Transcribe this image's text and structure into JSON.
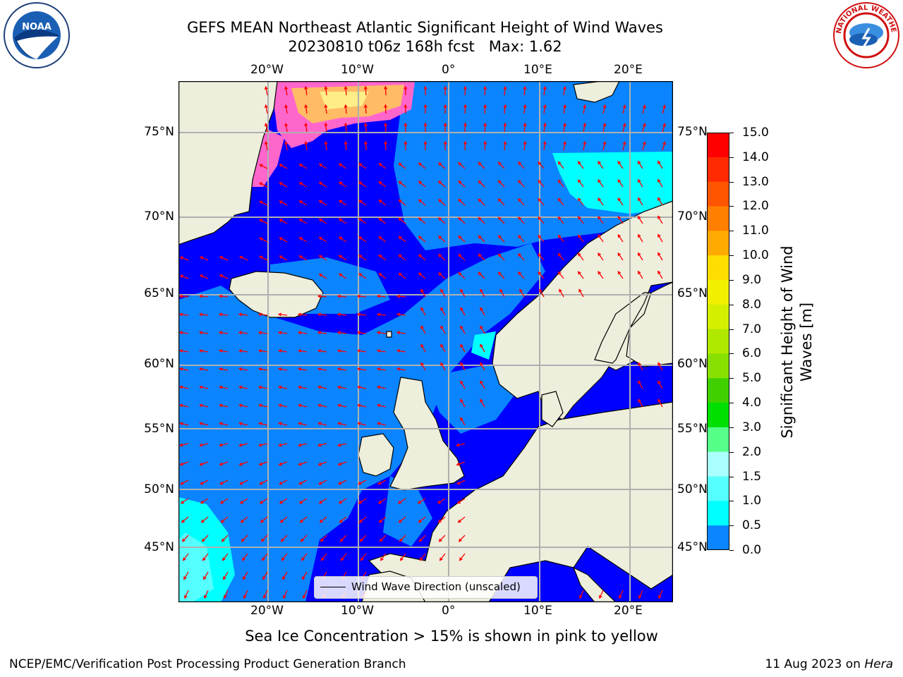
{
  "title": {
    "line1": "GEFS MEAN Northeast Atlantic Significant Height of Wind Waves",
    "line2": "20230810 t06z 168h fcst   Max: 1.62"
  },
  "axes": {
    "lon_ticks": [
      "20°W",
      "10°W",
      "0°",
      "10°E",
      "20°E"
    ],
    "lat_ticks": [
      "75°N",
      "70°N",
      "65°N",
      "60°N",
      "55°N",
      "50°N",
      "45°N"
    ]
  },
  "colorbar": {
    "title": "Significant Height of Wind Waves [m]",
    "labels": [
      "15.0",
      "14.0",
      "13.0",
      "12.0",
      "11.0",
      "10.0",
      "9.0",
      "8.0",
      "7.0",
      "6.0",
      "5.0",
      "4.0",
      "3.0",
      "2.0",
      "1.5",
      "1.0",
      "0.5",
      "0.0"
    ],
    "colors": [
      "#ff0000",
      "#ff2a00",
      "#ff5500",
      "#ff7f00",
      "#ffaa00",
      "#ffdd00",
      "#f0f000",
      "#d4f000",
      "#b0e800",
      "#88e000",
      "#40d000",
      "#00e000",
      "#55ff88",
      "#aaffff",
      "#55ffff",
      "#00ffff",
      "#0a85ff",
      "#0000ff"
    ]
  },
  "legend": {
    "label": "Wind Wave Direction (unscaled)"
  },
  "caption": "Sea Ice Concentration > 15% is shown in pink to yellow",
  "footer": {
    "left": "NCEP/EMC/Verification Post Processing Product Generation Branch",
    "right_prefix": "11 Aug 2023 on ",
    "right_host": "Hera"
  },
  "logos": {
    "noaa_text": "NOAA",
    "nws_text": "NATIONAL WEATHER SERVICE"
  },
  "map_colors": {
    "land": "#eeeedc",
    "ocean_low": "#0000ff",
    "ocean_mid": "#0a85ff",
    "ocean_high": "#00ffff",
    "arrow": "#ff0000"
  }
}
